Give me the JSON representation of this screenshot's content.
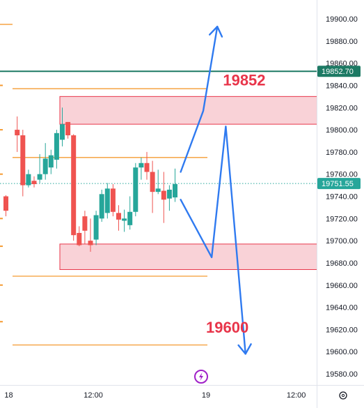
{
  "chart_data": {
    "type": "candlestick",
    "y_axis": {
      "ticks": [
        19580,
        19600,
        19620,
        19640,
        19660,
        19680,
        19700,
        19720,
        19740,
        19760,
        19780,
        19800,
        19820,
        19840,
        19860,
        19880,
        19900
      ],
      "ylim": [
        19572,
        19915
      ],
      "position": "right"
    },
    "x_axis": {
      "ticks": [
        {
          "label": "18",
          "i": 0.5
        },
        {
          "label": "12:00",
          "i": 15.5
        },
        {
          "label": "19",
          "i": 35.5
        },
        {
          "label": "12:00",
          "i": 51.5
        }
      ],
      "range": [
        -1.5,
        60
      ]
    },
    "grid": false,
    "candles": [
      {
        "i": 0,
        "o": 19740,
        "h": 19741,
        "c": 19727,
        "l": 19722
      },
      {
        "i": 2,
        "o": 19800,
        "h": 19812,
        "c": 19795,
        "l": 19780
      },
      {
        "i": 3,
        "o": 19795,
        "h": 19800,
        "c": 19750,
        "l": 19740
      },
      {
        "i": 4,
        "o": 19750,
        "h": 19764,
        "c": 19760,
        "l": 19748
      },
      {
        "i": 5,
        "o": 19754,
        "h": 19758,
        "c": 19751,
        "l": 19748
      },
      {
        "i": 6,
        "o": 19755,
        "h": 19778,
        "c": 19760,
        "l": 19752
      },
      {
        "i": 7,
        "o": 19760,
        "h": 19788,
        "c": 19774,
        "l": 19755
      },
      {
        "i": 8,
        "o": 19766,
        "h": 19782,
        "c": 19777,
        "l": 19760
      },
      {
        "i": 9,
        "o": 19773,
        "h": 19800,
        "c": 19797,
        "l": 19765
      },
      {
        "i": 10,
        "o": 19791,
        "h": 19820,
        "c": 19805,
        "l": 19785
      },
      {
        "i": 11,
        "o": 19807,
        "h": 19807,
        "c": 19795,
        "l": 19792
      },
      {
        "i": 12,
        "o": 19795,
        "h": 19796,
        "c": 19705,
        "l": 19700
      },
      {
        "i": 13,
        "o": 19707,
        "h": 19713,
        "c": 19696,
        "l": 19695
      },
      {
        "i": 14,
        "o": 19722,
        "h": 19727,
        "c": 19709,
        "l": 19697
      },
      {
        "i": 15,
        "o": 19700,
        "h": 19720,
        "c": 19696,
        "l": 19690
      },
      {
        "i": 16,
        "o": 19701,
        "h": 19727,
        "c": 19723,
        "l": 19696
      },
      {
        "i": 17,
        "o": 19720,
        "h": 19746,
        "c": 19742,
        "l": 19717
      },
      {
        "i": 18,
        "o": 19725,
        "h": 19752,
        "c": 19747,
        "l": 19720
      },
      {
        "i": 19,
        "o": 19747,
        "h": 19751,
        "c": 19726,
        "l": 19722
      },
      {
        "i": 20,
        "o": 19725,
        "h": 19732,
        "c": 19719,
        "l": 19709
      },
      {
        "i": 21,
        "o": 19718,
        "h": 19728,
        "c": 19720,
        "l": 19708
      },
      {
        "i": 22,
        "o": 19714,
        "h": 19740,
        "c": 19726,
        "l": 19710
      },
      {
        "i": 23,
        "o": 19726,
        "h": 19770,
        "c": 19766,
        "l": 19722
      },
      {
        "i": 24,
        "o": 19766,
        "h": 19775,
        "c": 19770,
        "l": 19755
      },
      {
        "i": 25,
        "o": 19770,
        "h": 19780,
        "c": 19762,
        "l": 19755
      },
      {
        "i": 26,
        "o": 19762,
        "h": 19772,
        "c": 19744,
        "l": 19725
      },
      {
        "i": 27,
        "o": 19744,
        "h": 19764,
        "c": 19747,
        "l": 19742
      },
      {
        "i": 28,
        "o": 19745,
        "h": 19762,
        "c": 19737,
        "l": 19716
      },
      {
        "i": 29,
        "o": 19738,
        "h": 19750,
        "c": 19746,
        "l": 19727
      },
      {
        "i": 30,
        "o": 19739,
        "h": 19765,
        "c": 19751,
        "l": 19735
      }
    ],
    "horizontal_lines": [
      {
        "y": 19895,
        "color": "#f59b32",
        "from": "left-edge"
      },
      {
        "y": 19837,
        "color": "#f59b32"
      },
      {
        "y": 19775,
        "color": "#f59b32"
      },
      {
        "y": 19668,
        "color": "#f59b32"
      },
      {
        "y": 19606,
        "color": "#f59b32"
      },
      {
        "y": 19852.7,
        "color": "#1d7a64",
        "label": "19852.70",
        "full_width": true
      }
    ],
    "left_edge_markers": [
      19840,
      19800,
      19760,
      19720,
      19695,
      19660,
      19627
    ],
    "zones": [
      {
        "y_top": 19830,
        "y_bottom": 19805,
        "color": "#f8c7cd"
      },
      {
        "y_top": 19697,
        "y_bottom": 19674,
        "color": "#f8c7cd"
      }
    ],
    "current_price": {
      "value": "19751.55",
      "color": "#26a69a"
    },
    "annotations": [
      {
        "text": "19852",
        "y": 19840,
        "i": 38.5
      },
      {
        "text": "19600",
        "y": 19617,
        "i": 35.5
      }
    ],
    "projection_paths": [
      {
        "points": [
          [
            31,
            19762
          ],
          [
            35,
            19817
          ],
          [
            37.5,
            19893
          ]
        ],
        "arrow": true
      },
      {
        "points": [
          [
            31,
            19737
          ],
          [
            36.5,
            19685
          ],
          [
            39,
            19803
          ],
          [
            42.5,
            19598
          ]
        ],
        "arrow": true
      }
    ],
    "colors": {
      "up": "#26a69a",
      "down": "#ef5350",
      "arrow": "#2f7af0",
      "zone_border": "#e8354a"
    }
  },
  "watermark_icon": "lightning-icon",
  "settings_icon": "gear-icon"
}
